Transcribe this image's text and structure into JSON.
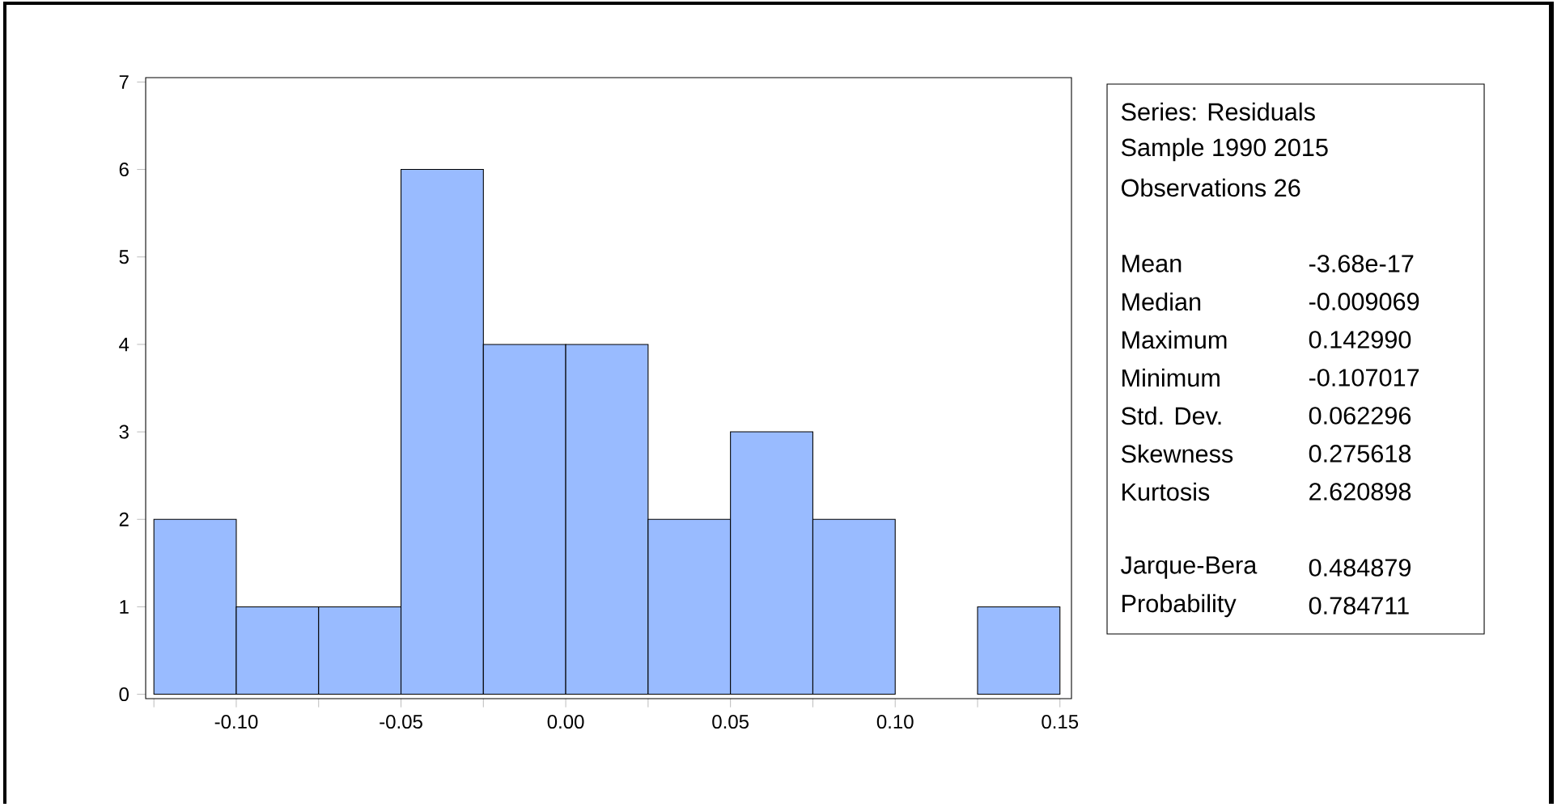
{
  "chart_data": {
    "type": "histogram",
    "bins": [
      -0.125,
      -0.1,
      -0.075,
      -0.05,
      -0.025,
      0.0,
      0.025,
      0.05,
      0.075,
      0.1,
      0.125,
      0.15
    ],
    "values": [
      2,
      1,
      1,
      6,
      4,
      4,
      2,
      3,
      2,
      0,
      1
    ],
    "color": "#99bbff",
    "xlim": [
      -0.1275,
      0.1535
    ],
    "ylim": [
      -0.05,
      7.05
    ],
    "xticks": [
      {
        "value": -0.125,
        "label": null
      },
      {
        "value": -0.1,
        "label": "-0.10"
      },
      {
        "value": -0.075,
        "label": null
      },
      {
        "value": -0.05,
        "label": "-0.05"
      },
      {
        "value": -0.025,
        "label": null
      },
      {
        "value": 0.0,
        "label": "0.00"
      },
      {
        "value": 0.025,
        "label": null
      },
      {
        "value": 0.05,
        "label": "0.05"
      },
      {
        "value": 0.075,
        "label": null
      },
      {
        "value": 0.1,
        "label": "0.10"
      },
      {
        "value": 0.125,
        "label": null
      },
      {
        "value": 0.15,
        "label": "0.15"
      }
    ],
    "yticks": [
      0,
      1,
      2,
      3,
      4,
      5,
      6,
      7
    ],
    "annotations": [
      "Series: Residuals",
      "Sample 1990 2015",
      "Observations 26",
      "Mean",
      "-3.68e-17",
      "Median",
      "-0.009069",
      "Maximum",
      "0.142990",
      "Minimum",
      "-0.107017",
      "Std. Dev.",
      "0.062296",
      "Skewness",
      "0.275618",
      "Kurtosis",
      "2.620898",
      "Jarque-Bera",
      "0.484879",
      "Probability",
      "0.784711"
    ]
  }
}
